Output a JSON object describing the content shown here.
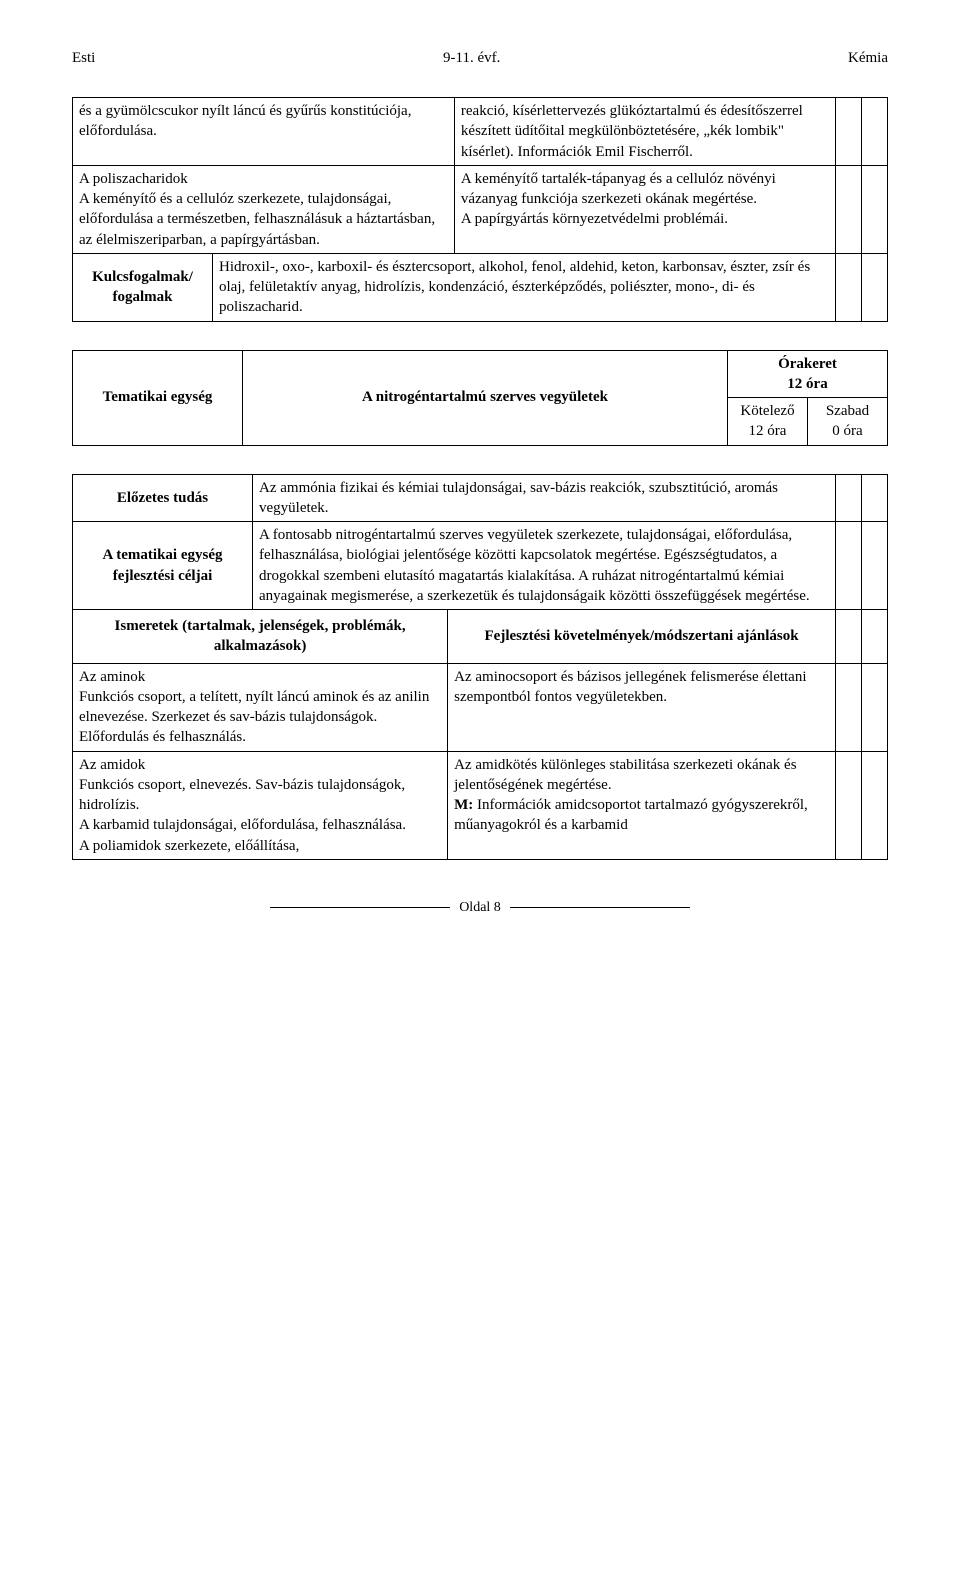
{
  "header": {
    "left": "Esti",
    "center": "9-11. évf.",
    "right": "Kémia"
  },
  "table1": {
    "row1": {
      "left": "és a gyümölcscukor nyílt láncú és gyűrűs konstitúciója, előfordulása.",
      "right": "reakció, kísérlettervezés glükóztartalmú és édesítőszerrel készített üdítőital megkülönböztetésére, „kék lombik\" kísérlet). Információk Emil Fischerről."
    },
    "row2": {
      "left": "A poliszacharidok\nA keményítő és a cellulóz szerkezete, tulajdonságai, előfordulása a természetben, felhasználásuk a háztartásban, az élelmiszeriparban, a papírgyártásban.",
      "right": "A keményítő tartalék-tápanyag és a cellulóz növényi vázanyag funkciója szerkezeti okának megértése.\nA papírgyártás környezetvédelmi problémái."
    },
    "row3": {
      "label": "Kulcsfogalmak/ fogalmak",
      "content": "Hidroxil-, oxo-, karboxil- és észtercsoport, alkohol, fenol, aldehid, keton, karbonsav, észter, zsír és olaj, felületaktív anyag, hidrolízis, kondenzáció, észterképződés, poliészter, mono-, di- és poliszacharid."
    }
  },
  "table2": {
    "tematikai_label": "Tematikai egység",
    "title": "A nitrogéntartalmú szerves vegyületek",
    "orakeret_title": "Órakeret\n12 óra",
    "kotelezo": "Kötelező\n12 óra",
    "szabad": "Szabad\n0 óra"
  },
  "table3": {
    "elozetes_label": "Előzetes tudás",
    "elozetes_content": "Az ammónia fizikai és kémiai tulajdonságai, sav-bázis reakciók, szubsztitúció, aromás vegyületek.",
    "fejlesztesi_label": "A tematikai egység fejlesztési céljai",
    "fejlesztesi_content": "A fontosabb nitrogéntartalmú szerves vegyületek szerkezete, tulajdonságai, előfordulása, felhasználása, biológiai jelentősége közötti kapcsolatok megértése. Egészségtudatos, a drogokkal szembeni elutasító magatartás kialakítása. A ruházat nitrogéntartalmú kémiai anyagainak megismerése, a szerkezetük és tulajdonságaik közötti összefüggések megértése.",
    "ismeretek_header": "Ismeretek (tartalmak, jelenségek, problémák, alkalmazások)",
    "fejlesztesi_header": "Fejlesztési követelmények/módszertani ajánlások",
    "row_aminok": {
      "left": "Az aminok\nFunkciós csoport, a telített, nyílt láncú aminok és az anilin elnevezése. Szerkezet és sav-bázis tulajdonságok.\nElőfordulás és felhasználás.",
      "right": "Az aminocsoport és bázisos jellegének felismerése élettani szempontból fontos vegyületekben."
    },
    "row_amidok": {
      "left": "Az amidok\nFunkciós csoport, elnevezés. Sav-bázis tulajdonságok, hidrolízis.\nA karbamid tulajdonságai, előfordulása, felhasználása.\nA poliamidok szerkezete, előállítása,",
      "right": "Az amidkötés különleges stabilitása szerkezeti okának és jelentőségének megértése.\nM: Információk amidcsoportot tartalmazó gyógyszerekről, műanyagokról és a karbamid"
    }
  },
  "footer": {
    "text": "Oldal 8"
  },
  "styles": {
    "bold_prefix_m": "M:"
  }
}
